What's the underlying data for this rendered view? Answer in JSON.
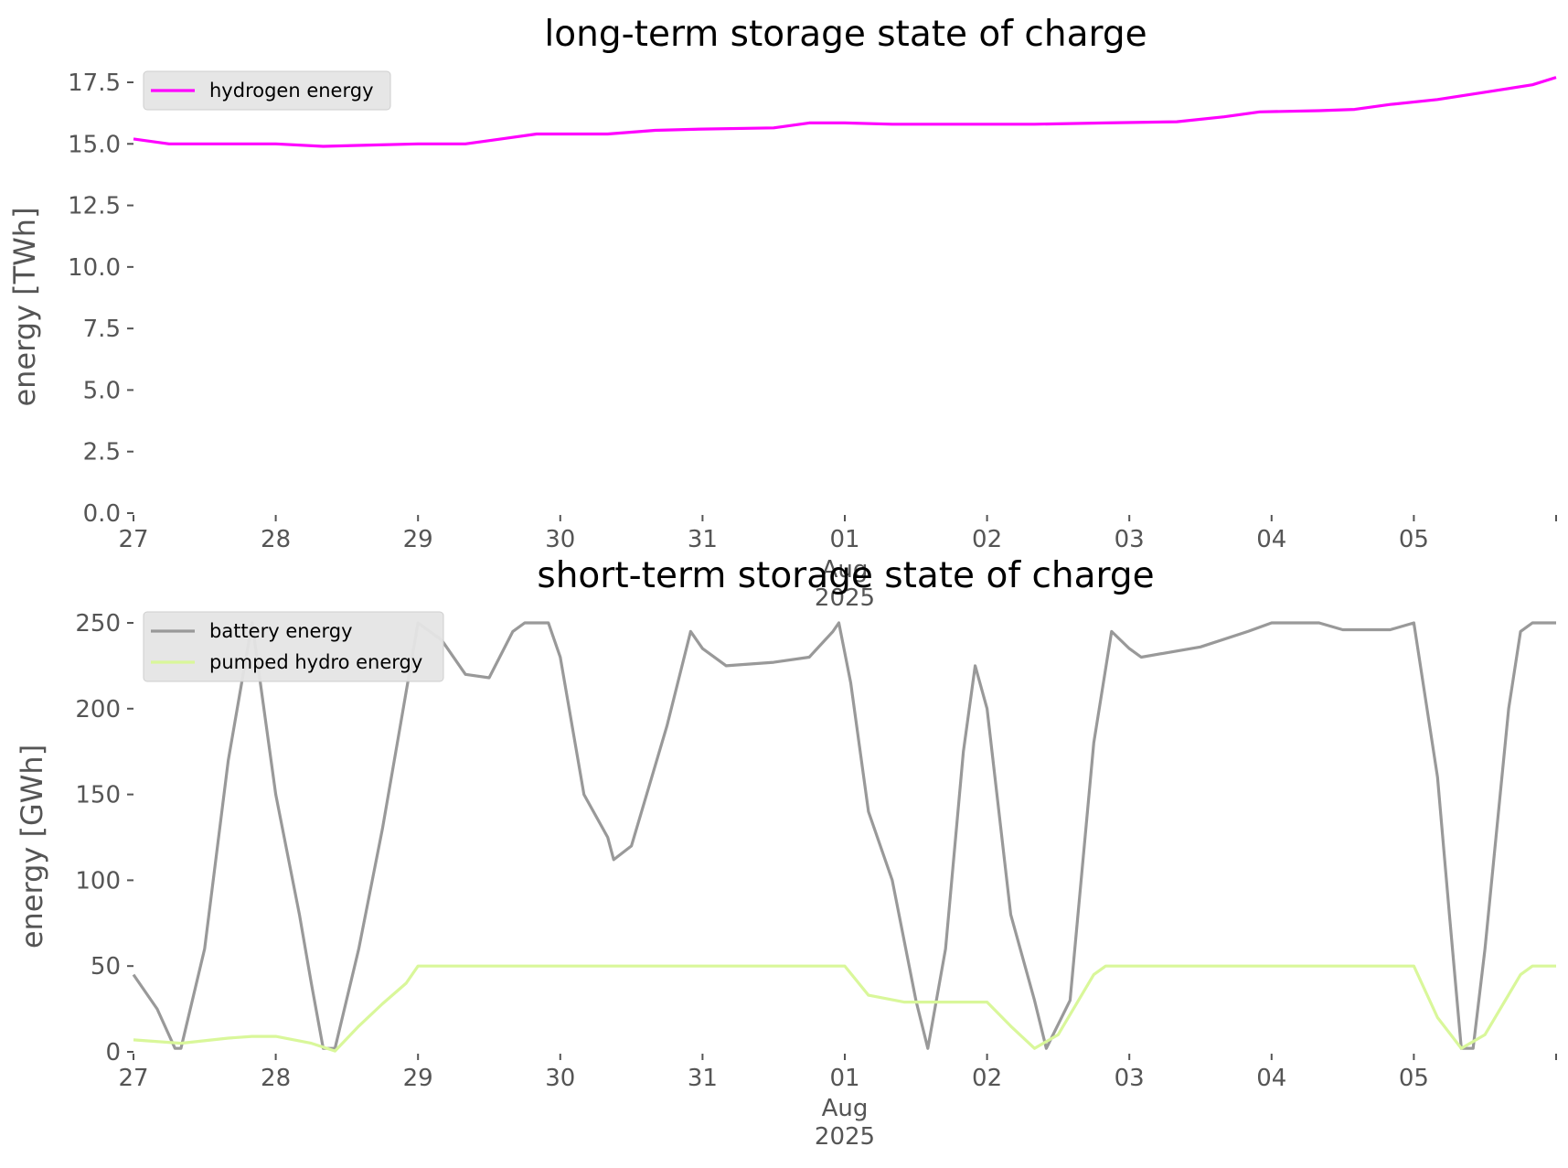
{
  "chart_data": [
    {
      "type": "line",
      "title": "long-term storage state of charge",
      "xlabel": "",
      "ylabel": "energy [TWh]",
      "ylim": [
        0,
        17.5
      ],
      "yticks": [
        "0.0",
        "2.5",
        "5.0",
        "7.5",
        "10.0",
        "12.5",
        "15.0",
        "17.5"
      ],
      "yticks_values": [
        0,
        2.5,
        5,
        7.5,
        10,
        12.5,
        15,
        17.5
      ],
      "xlim": [
        "2025-07-27",
        "2025-08-06"
      ],
      "xticks": [
        {
          "date": "2025-07-27",
          "label": "27"
        },
        {
          "date": "2025-07-28",
          "label": "28"
        },
        {
          "date": "2025-07-29",
          "label": "29"
        },
        {
          "date": "2025-07-30",
          "label": "30"
        },
        {
          "date": "2025-07-31",
          "label": "31"
        },
        {
          "date": "2025-08-01",
          "label": "01",
          "month": "Aug",
          "year": "2025"
        },
        {
          "date": "2025-08-02",
          "label": "02"
        },
        {
          "date": "2025-08-03",
          "label": "03"
        },
        {
          "date": "2025-08-04",
          "label": "04"
        },
        {
          "date": "2025-08-05",
          "label": "05"
        },
        {
          "date": "2025-08-06",
          "label": ""
        }
      ],
      "grid": false,
      "legend_position": "top-left",
      "series": [
        {
          "name": "hydrogen energy",
          "color": "#ff00ff",
          "points": [
            [
              "2025-07-27T00:00",
              15.2
            ],
            [
              "2025-07-27T06:00",
              15.0
            ],
            [
              "2025-07-27T12:00",
              15.0
            ],
            [
              "2025-07-28T00:00",
              15.0
            ],
            [
              "2025-07-28T08:00",
              14.9
            ],
            [
              "2025-07-28T16:00",
              14.95
            ],
            [
              "2025-07-29T00:00",
              15.0
            ],
            [
              "2025-07-29T08:00",
              15.0
            ],
            [
              "2025-07-29T14:00",
              15.2
            ],
            [
              "2025-07-29T20:00",
              15.4
            ],
            [
              "2025-07-30T08:00",
              15.4
            ],
            [
              "2025-07-30T16:00",
              15.55
            ],
            [
              "2025-07-31T00:00",
              15.6
            ],
            [
              "2025-07-31T12:00",
              15.65
            ],
            [
              "2025-07-31T18:00",
              15.85
            ],
            [
              "2025-08-01T00:00",
              15.85
            ],
            [
              "2025-08-01T08:00",
              15.8
            ],
            [
              "2025-08-02T08:00",
              15.8
            ],
            [
              "2025-08-02T20:00",
              15.85
            ],
            [
              "2025-08-03T08:00",
              15.9
            ],
            [
              "2025-08-03T16:00",
              16.1
            ],
            [
              "2025-08-03T22:00",
              16.3
            ],
            [
              "2025-08-04T08:00",
              16.35
            ],
            [
              "2025-08-04T14:00",
              16.4
            ],
            [
              "2025-08-04T20:00",
              16.6
            ],
            [
              "2025-08-05T04:00",
              16.8
            ],
            [
              "2025-08-05T12:00",
              17.1
            ],
            [
              "2025-08-05T20:00",
              17.4
            ],
            [
              "2025-08-06T00:00",
              17.7
            ]
          ]
        }
      ]
    },
    {
      "type": "line",
      "title": "short-term storage state of charge",
      "xlabel": "",
      "ylabel": "energy [GWh]",
      "ylim": [
        0,
        250
      ],
      "yticks": [
        "0",
        "50",
        "100",
        "150",
        "200",
        "250"
      ],
      "yticks_values": [
        0,
        50,
        100,
        150,
        200,
        250
      ],
      "xlim": [
        "2025-07-27",
        "2025-08-06"
      ],
      "xticks": [
        {
          "date": "2025-07-27",
          "label": "27"
        },
        {
          "date": "2025-07-28",
          "label": "28"
        },
        {
          "date": "2025-07-29",
          "label": "29"
        },
        {
          "date": "2025-07-30",
          "label": "30"
        },
        {
          "date": "2025-07-31",
          "label": "31"
        },
        {
          "date": "2025-08-01",
          "label": "01",
          "month": "Aug",
          "year": "2025"
        },
        {
          "date": "2025-08-02",
          "label": "02"
        },
        {
          "date": "2025-08-03",
          "label": "03"
        },
        {
          "date": "2025-08-04",
          "label": "04"
        },
        {
          "date": "2025-08-05",
          "label": "05"
        },
        {
          "date": "2025-08-06",
          "label": ""
        }
      ],
      "grid": false,
      "legend_position": "top-left",
      "series": [
        {
          "name": "battery energy",
          "color": "#999999",
          "points": [
            [
              "2025-07-27T00:00",
              45
            ],
            [
              "2025-07-27T04:00",
              25
            ],
            [
              "2025-07-27T07:00",
              2
            ],
            [
              "2025-07-27T08:00",
              2
            ],
            [
              "2025-07-27T12:00",
              60
            ],
            [
              "2025-07-27T16:00",
              170
            ],
            [
              "2025-07-27T20:00",
              250
            ],
            [
              "2025-07-28T00:00",
              150
            ],
            [
              "2025-07-28T04:00",
              80
            ],
            [
              "2025-07-28T06:00",
              40
            ],
            [
              "2025-07-28T08:00",
              2
            ],
            [
              "2025-07-28T10:00",
              2
            ],
            [
              "2025-07-28T14:00",
              60
            ],
            [
              "2025-07-28T18:00",
              130
            ],
            [
              "2025-07-28T21:00",
              190
            ],
            [
              "2025-07-29T00:00",
              250
            ],
            [
              "2025-07-29T04:00",
              240
            ],
            [
              "2025-07-29T08:00",
              220
            ],
            [
              "2025-07-29T12:00",
              218
            ],
            [
              "2025-07-29T16:00",
              245
            ],
            [
              "2025-07-29T18:00",
              250
            ],
            [
              "2025-07-29T22:00",
              250
            ],
            [
              "2025-07-30T00:00",
              230
            ],
            [
              "2025-07-30T04:00",
              150
            ],
            [
              "2025-07-30T08:00",
              125
            ],
            [
              "2025-07-30T09:00",
              112
            ],
            [
              "2025-07-30T12:00",
              120
            ],
            [
              "2025-07-30T18:00",
              190
            ],
            [
              "2025-07-30T22:00",
              245
            ],
            [
              "2025-07-31T00:00",
              235
            ],
            [
              "2025-07-31T04:00",
              225
            ],
            [
              "2025-07-31T12:00",
              227
            ],
            [
              "2025-07-31T18:00",
              230
            ],
            [
              "2025-07-31T22:00",
              245
            ],
            [
              "2025-07-31T23:00",
              250
            ],
            [
              "2025-08-01T01:00",
              215
            ],
            [
              "2025-08-01T04:00",
              140
            ],
            [
              "2025-08-01T08:00",
              100
            ],
            [
              "2025-08-01T12:00",
              30
            ],
            [
              "2025-08-01T14:00",
              2
            ],
            [
              "2025-08-01T17:00",
              60
            ],
            [
              "2025-08-01T20:00",
              175
            ],
            [
              "2025-08-01T22:00",
              225
            ],
            [
              "2025-08-02T00:00",
              200
            ],
            [
              "2025-08-02T04:00",
              80
            ],
            [
              "2025-08-02T08:00",
              30
            ],
            [
              "2025-08-02T10:00",
              2
            ],
            [
              "2025-08-02T14:00",
              30
            ],
            [
              "2025-08-02T18:00",
              180
            ],
            [
              "2025-08-02T21:00",
              245
            ],
            [
              "2025-08-03T00:00",
              235
            ],
            [
              "2025-08-03T02:00",
              230
            ],
            [
              "2025-08-03T12:00",
              236
            ],
            [
              "2025-08-03T20:00",
              245
            ],
            [
              "2025-08-04T00:00",
              250
            ],
            [
              "2025-08-04T08:00",
              250
            ],
            [
              "2025-08-04T12:00",
              246
            ],
            [
              "2025-08-04T20:00",
              246
            ],
            [
              "2025-08-05T00:00",
              250
            ],
            [
              "2025-08-05T04:00",
              160
            ],
            [
              "2025-08-05T06:00",
              80
            ],
            [
              "2025-08-05T08:00",
              2
            ],
            [
              "2025-08-05T10:00",
              2
            ],
            [
              "2025-08-05T12:00",
              60
            ],
            [
              "2025-08-05T16:00",
              200
            ],
            [
              "2025-08-05T18:00",
              245
            ],
            [
              "2025-08-05T20:00",
              250
            ],
            [
              "2025-08-06T00:00",
              250
            ]
          ]
        },
        {
          "name": "pumped hydro energy",
          "color": "#d9f79a",
          "points": [
            [
              "2025-07-27T00:00",
              7
            ],
            [
              "2025-07-27T08:00",
              5
            ],
            [
              "2025-07-27T16:00",
              8
            ],
            [
              "2025-07-27T20:00",
              9
            ],
            [
              "2025-07-28T00:00",
              9
            ],
            [
              "2025-07-28T06:00",
              5
            ],
            [
              "2025-07-28T10:00",
              0.5
            ],
            [
              "2025-07-28T14:00",
              15
            ],
            [
              "2025-07-28T18:00",
              28
            ],
            [
              "2025-07-28T22:00",
              40
            ],
            [
              "2025-07-29T00:00",
              50
            ],
            [
              "2025-07-30T00:00",
              50
            ],
            [
              "2025-07-31T00:00",
              50
            ],
            [
              "2025-08-01T00:00",
              50
            ],
            [
              "2025-08-01T04:00",
              33
            ],
            [
              "2025-08-01T10:00",
              29
            ],
            [
              "2025-08-02T00:00",
              29
            ],
            [
              "2025-08-02T04:00",
              15
            ],
            [
              "2025-08-02T08:00",
              2
            ],
            [
              "2025-08-02T12:00",
              10
            ],
            [
              "2025-08-02T18:00",
              45
            ],
            [
              "2025-08-02T20:00",
              50
            ],
            [
              "2025-08-03T00:00",
              50
            ],
            [
              "2025-08-04T00:00",
              50
            ],
            [
              "2025-08-05T00:00",
              50
            ],
            [
              "2025-08-05T04:00",
              20
            ],
            [
              "2025-08-05T08:00",
              2
            ],
            [
              "2025-08-05T12:00",
              10
            ],
            [
              "2025-08-05T18:00",
              45
            ],
            [
              "2025-08-05T20:00",
              50
            ],
            [
              "2025-08-06T00:00",
              50
            ]
          ]
        }
      ]
    }
  ]
}
